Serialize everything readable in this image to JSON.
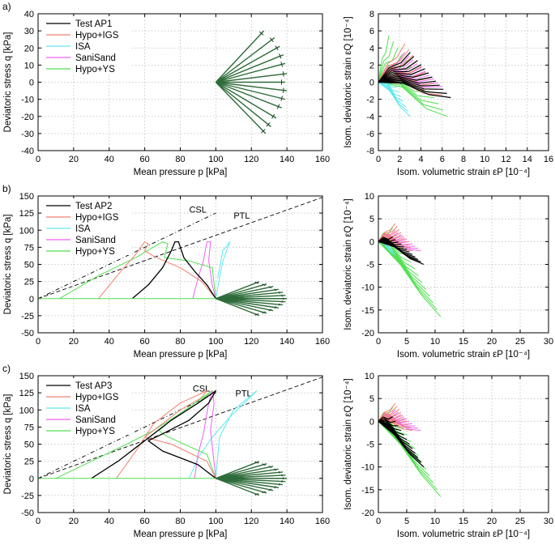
{
  "chart_data": [
    {
      "id": "a-left",
      "panel_label": "a)",
      "type": "line",
      "xlabel": "Mean pressure p [kPa]",
      "ylabel": "Deviatoric stress q [kPa]",
      "xlim": [
        0,
        160
      ],
      "ylim": [
        -40,
        40
      ],
      "xticks": [
        0,
        20,
        40,
        60,
        80,
        100,
        120,
        140,
        160
      ],
      "yticks": [
        -40,
        -30,
        -20,
        -10,
        0,
        10,
        20,
        30,
        40
      ],
      "legend": [
        "Test AP1",
        "Hypo+IGS",
        "ISA",
        "SaniSand",
        "Hypo+YS"
      ],
      "center": [
        100,
        0
      ],
      "fan_angles_deg": [
        -50,
        -40,
        -30,
        -20,
        -10,
        0,
        10,
        20,
        30,
        40,
        50
      ],
      "fan_reach": [
        [
          127,
          30
        ],
        [
          133,
          26
        ],
        [
          136,
          21
        ],
        [
          138,
          16
        ],
        [
          139,
          11
        ],
        [
          140,
          5
        ],
        [
          139,
          0
        ],
        [
          140,
          -5
        ],
        [
          139,
          -10
        ],
        [
          137,
          -15
        ],
        [
          134,
          -21
        ],
        [
          131,
          -26
        ],
        [
          128,
          -30
        ]
      ]
    },
    {
      "id": "a-right",
      "type": "line",
      "xlabel": "Isom. volumetric strain  εP [10⁻⁴]",
      "ylabel": "Isom. deviatoric strain  εQ [10⁻⁴]",
      "xlim": [
        0,
        16
      ],
      "ylim": [
        -8,
        8
      ],
      "xticks": [
        0,
        2,
        4,
        6,
        8,
        10,
        12,
        14,
        16
      ],
      "yticks": [
        -8,
        -6,
        -4,
        -2,
        0,
        2,
        4,
        6,
        8
      ]
    },
    {
      "id": "b-left",
      "panel_label": "b)",
      "type": "line",
      "xlabel": "Mean pressure p [kPa]",
      "ylabel": "Deviatoric stress q [kPa]",
      "xlim": [
        0,
        160
      ],
      "ylim": [
        -50,
        150
      ],
      "xticks": [
        0,
        20,
        40,
        60,
        80,
        100,
        120,
        140,
        160
      ],
      "yticks": [
        -50,
        -25,
        0,
        25,
        50,
        75,
        100,
        125,
        150
      ],
      "legend": [
        "Test AP2",
        "Hypo+IGS",
        "ISA",
        "SaniSand",
        "Hypo+YS"
      ],
      "annotations": [
        "CSL",
        "PTL"
      ],
      "csl": [
        [
          0,
          0
        ],
        [
          100,
          125
        ]
      ],
      "ptl": [
        [
          0,
          0
        ],
        [
          160,
          148
        ]
      ]
    },
    {
      "id": "b-right",
      "type": "line",
      "xlabel": "Isom. volumetric strain  εP [10⁻⁴]",
      "ylabel": "Isom. deviatoric strain  εQ [10⁻⁴]",
      "xlim": [
        0,
        30
      ],
      "ylim": [
        -20,
        10
      ],
      "xticks": [
        0,
        5,
        10,
        15,
        20,
        25,
        30
      ],
      "yticks": [
        -20,
        -15,
        -10,
        -5,
        0,
        5,
        10
      ]
    },
    {
      "id": "c-left",
      "panel_label": "c)",
      "type": "line",
      "xlabel": "Mean pressure p [kPa]",
      "ylabel": "Deviatoric stress q [kPa]",
      "xlim": [
        0,
        160
      ],
      "ylim": [
        -50,
        150
      ],
      "xticks": [
        0,
        20,
        40,
        60,
        80,
        100,
        120,
        140,
        160
      ],
      "yticks": [
        -50,
        -25,
        0,
        25,
        50,
        75,
        100,
        125,
        150
      ],
      "legend": [
        "Test AP3",
        "Hypo+IGS",
        "ISA",
        "SaniSand",
        "Hypo+YS"
      ],
      "annotations": [
        "CSL",
        "PTL"
      ],
      "csl": [
        [
          0,
          0
        ],
        [
          100,
          125
        ]
      ],
      "ptl": [
        [
          0,
          0
        ],
        [
          160,
          148
        ]
      ]
    },
    {
      "id": "c-right",
      "type": "line",
      "xlabel": "Isom. volumetric strain  εP [10⁻⁴]",
      "ylabel": "Isom. deviatoric strain  εQ [10⁻⁴]",
      "xlim": [
        0,
        30
      ],
      "ylim": [
        -20,
        10
      ],
      "xticks": [
        0,
        5,
        10,
        15,
        20,
        25,
        30
      ],
      "yticks": [
        -20,
        -15,
        -10,
        -5,
        0,
        5,
        10
      ]
    }
  ],
  "series_colors": {
    "Test": "#000000",
    "Hypo+IGS": "#f08070",
    "ISA": "#60e8f0",
    "SaniSand": "#f060f0",
    "Hypo+YS": "#50e050",
    "fan": "#2e6b3a"
  }
}
